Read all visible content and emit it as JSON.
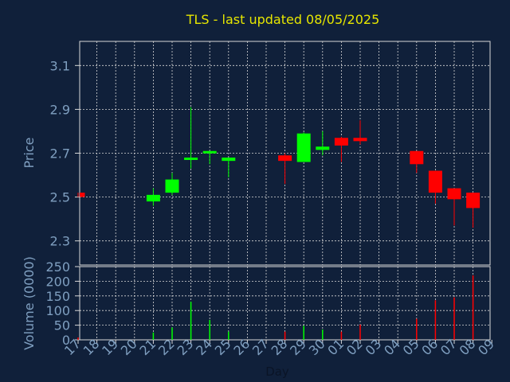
{
  "colors": {
    "background": "#10203a",
    "grid": "#d8d8d8",
    "frame": "#d8d8d8",
    "title": "#e6e600",
    "axis_text": "#7f9fc0",
    "up": "#00ff00",
    "down": "#ff0000"
  },
  "chart_data": [
    {
      "type": "candlestick",
      "title": "TLS - last updated 08/05/2025",
      "ylabel": "Price",
      "ylim": [
        2.19,
        3.21
      ],
      "yticks": [
        2.3,
        2.5,
        2.7,
        2.9,
        3.1
      ],
      "ytick_labels": [
        "2.3",
        "2.5",
        "2.7",
        "2.9",
        "3.1"
      ],
      "grid": true,
      "days": [
        {
          "day": "17",
          "open": 2.52,
          "high": 2.52,
          "low": 2.5,
          "close": 2.5
        },
        {
          "day": "18",
          "open": null,
          "high": null,
          "low": null,
          "close": null
        },
        {
          "day": "19",
          "open": null,
          "high": null,
          "low": null,
          "close": null
        },
        {
          "day": "20",
          "open": null,
          "high": null,
          "low": null,
          "close": null
        },
        {
          "day": "21",
          "open": 2.48,
          "high": 2.54,
          "low": 2.46,
          "close": 2.51
        },
        {
          "day": "22",
          "open": 2.52,
          "high": 2.61,
          "low": 2.51,
          "close": 2.58
        },
        {
          "day": "23",
          "open": 2.675,
          "high": 2.91,
          "low": 2.63,
          "close": 2.68
        },
        {
          "day": "24",
          "open": 2.7,
          "high": 2.71,
          "low": 2.65,
          "close": 2.71
        },
        {
          "day": "25",
          "open": 2.665,
          "high": 2.68,
          "low": 2.59,
          "close": 2.68
        },
        {
          "day": "26",
          "open": null,
          "high": null,
          "low": null,
          "close": null
        },
        {
          "day": "27",
          "open": null,
          "high": null,
          "low": null,
          "close": null
        },
        {
          "day": "28",
          "open": 2.69,
          "high": 2.7,
          "low": 2.56,
          "close": 2.665
        },
        {
          "day": "29",
          "open": 2.66,
          "high": 2.795,
          "low": 2.66,
          "close": 2.79
        },
        {
          "day": "30",
          "open": 2.715,
          "high": 2.8,
          "low": 2.69,
          "close": 2.73
        },
        {
          "day": "01",
          "open": 2.77,
          "high": 2.775,
          "low": 2.66,
          "close": 2.735
        },
        {
          "day": "02",
          "open": 2.77,
          "high": 2.85,
          "low": 2.74,
          "close": 2.755
        },
        {
          "day": "03",
          "open": null,
          "high": null,
          "low": null,
          "close": null
        },
        {
          "day": "04",
          "open": null,
          "high": null,
          "low": null,
          "close": null
        },
        {
          "day": "05",
          "open": 2.71,
          "high": 2.71,
          "low": 2.61,
          "close": 2.65
        },
        {
          "day": "06",
          "open": 2.62,
          "high": 2.62,
          "low": 2.47,
          "close": 2.52
        },
        {
          "day": "07",
          "open": 2.54,
          "high": 2.54,
          "low": 2.37,
          "close": 2.49
        },
        {
          "day": "08",
          "open": 2.52,
          "high": 2.52,
          "low": 2.36,
          "close": 2.45
        }
      ]
    },
    {
      "type": "bar",
      "xlabel": "Day",
      "ylabel": "Volume (0000)",
      "ylim": [
        0,
        250
      ],
      "yticks": [
        0,
        50,
        100,
        150,
        200,
        250
      ],
      "ytick_labels": [
        "0",
        "50",
        "100",
        "150",
        "200",
        "250"
      ],
      "categories": [
        "17",
        "18",
        "19",
        "20",
        "21",
        "22",
        "23",
        "24",
        "25",
        "26",
        "27",
        "28",
        "29",
        "30",
        "01",
        "02",
        "03",
        "04",
        "05",
        "06",
        "07",
        "08",
        "09"
      ],
      "values": [
        8,
        0,
        0,
        0,
        25,
        42,
        130,
        68,
        28,
        0,
        0,
        28,
        48,
        35,
        28,
        52,
        0,
        0,
        72,
        135,
        145,
        220,
        null
      ],
      "bar_direction": [
        "down",
        null,
        null,
        null,
        "up",
        "up",
        "up",
        "up",
        "up",
        null,
        null,
        "down",
        "up",
        "up",
        "down",
        "down",
        null,
        null,
        "down",
        "down",
        "down",
        "down",
        null
      ],
      "grid": true
    }
  ]
}
